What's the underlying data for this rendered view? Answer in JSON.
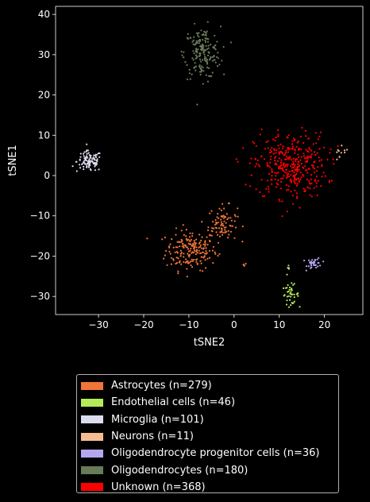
{
  "chart_data": {
    "type": "scatter",
    "xlabel": "tSNE2",
    "ylabel": "tSNE1",
    "xlim": [
      -39.5,
      28.5
    ],
    "ylim": [
      -34.5,
      42.0
    ],
    "xticks": [
      -30,
      -20,
      -10,
      0,
      10,
      20
    ],
    "yticks": [
      -30,
      -20,
      -10,
      0,
      10,
      20,
      30,
      40
    ],
    "grid": false,
    "legend_position": "below",
    "series": [
      {
        "name": "Astrocytes (n=279)",
        "color": "#f07538",
        "n": 279,
        "clusters": [
          {
            "cx": -9.5,
            "cy": -18.5,
            "sx": 2.8,
            "sy": 2.5,
            "n": 190
          },
          {
            "cx": -2.5,
            "cy": -12.0,
            "sx": 1.6,
            "sy": 2.2,
            "n": 85
          },
          {
            "cx": 2.3,
            "cy": -22.0,
            "sx": 0.3,
            "sy": 0.3,
            "n": 4
          }
        ]
      },
      {
        "name": "Endothelial cells (n=46)",
        "color": "#b5ea5a",
        "n": 46,
        "clusters": [
          {
            "cx": 12.5,
            "cy": -29.5,
            "sx": 0.9,
            "sy": 1.2,
            "n": 40
          },
          {
            "cx": 12.0,
            "cy": -23.5,
            "sx": 0.2,
            "sy": 0.6,
            "n": 6
          }
        ]
      },
      {
        "name": "Microglia (n=101)",
        "color": "#dcdcf0",
        "n": 101,
        "clusters": [
          {
            "cx": -32.0,
            "cy": 3.5,
            "sx": 1.4,
            "sy": 1.3,
            "n": 101
          }
        ]
      },
      {
        "name": "Neurons (n=11)",
        "color": "#f5bc94",
        "n": 11,
        "clusters": [
          {
            "cx": 23.5,
            "cy": 5.0,
            "sx": 1.0,
            "sy": 1.0,
            "n": 11
          }
        ]
      },
      {
        "name": "Oligodendrocyte progenitor cells (n=36)",
        "color": "#b6a6ee",
        "n": 36,
        "clusters": [
          {
            "cx": 17.8,
            "cy": -21.8,
            "sx": 0.8,
            "sy": 0.7,
            "n": 36
          }
        ]
      },
      {
        "name": "Oligodendrocytes (n=180)",
        "color": "#687b58",
        "n": 180,
        "clusters": [
          {
            "cx": -7.0,
            "cy": 30.5,
            "sx": 2.0,
            "sy": 3.2,
            "n": 180
          }
        ]
      },
      {
        "name": "Unknown (n=368)",
        "color": "#ff0000",
        "n": 368,
        "clusters": [
          {
            "cx": 12.5,
            "cy": 2.5,
            "sx": 4.0,
            "sy": 4.0,
            "n": 368
          }
        ]
      }
    ]
  }
}
